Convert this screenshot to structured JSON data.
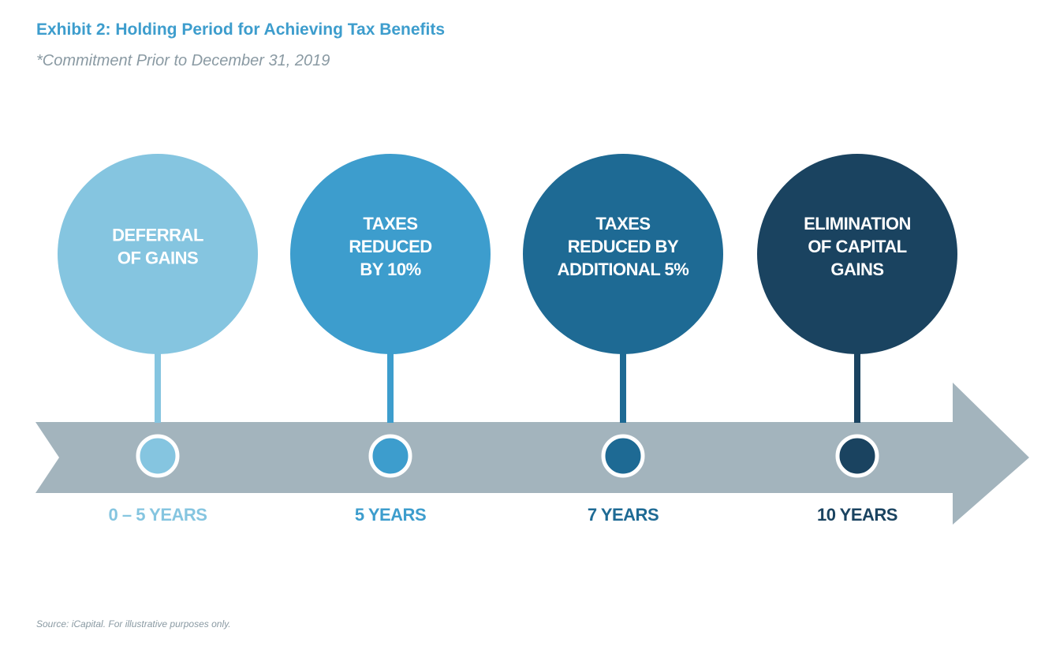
{
  "header": {
    "title": "Exhibit 2: Holding Period for Achieving Tax Benefits",
    "subtitle": "*Commitment Prior to December 31, 2019"
  },
  "stages": [
    {
      "label_lines": [
        "DEFERRAL",
        "OF GAINS"
      ],
      "period": "0 – 5 YEARS"
    },
    {
      "label_lines": [
        "TAXES",
        "REDUCED",
        "BY 10%"
      ],
      "period": "5 YEARS"
    },
    {
      "label_lines": [
        "TAXES",
        "REDUCED BY",
        "ADDITIONAL 5%"
      ],
      "period": "7 YEARS"
    },
    {
      "label_lines": [
        "ELIMINATION",
        "OF CAPITAL",
        "GAINS"
      ],
      "period": "10 YEARS"
    }
  ],
  "footer": {
    "source": "Source: iCapital. For illustrative purposes only."
  }
}
